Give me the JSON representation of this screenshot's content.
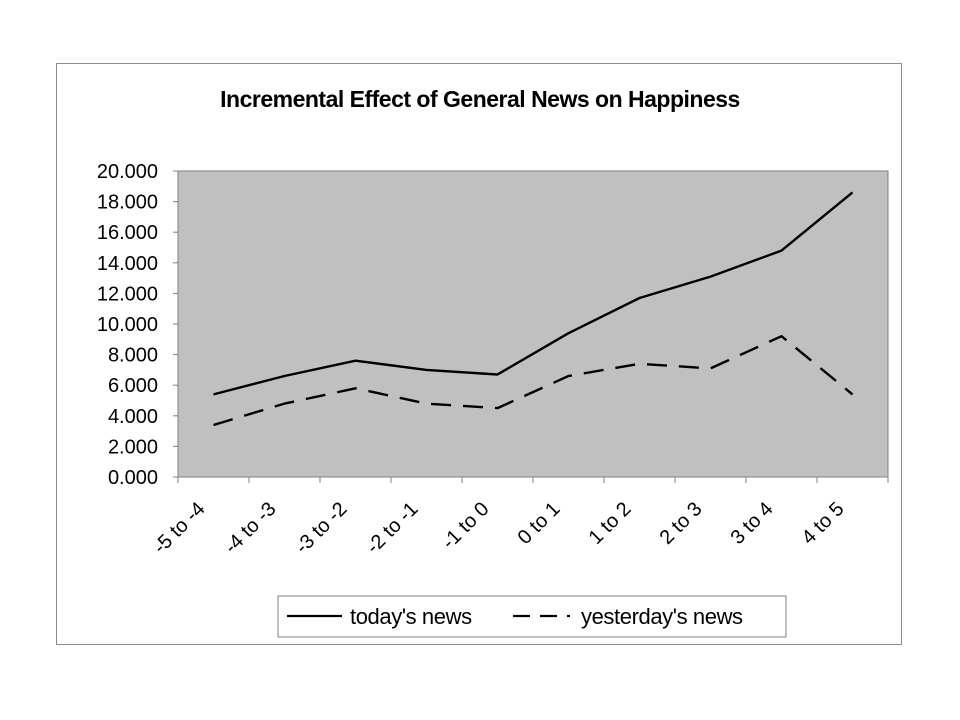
{
  "chart_data": {
    "type": "line",
    "title": "Incremental Effect of General News on Happiness",
    "xlabel": "",
    "ylabel": "",
    "categories": [
      "-5 to -4",
      "-4 to -3",
      "-3 to -2",
      "-2 to -1",
      "-1 to 0",
      "0 to 1",
      "1 to 2",
      "2 to 3",
      "3 to 4",
      "4 to 5"
    ],
    "y_ticks": [
      "0.000",
      "2.000",
      "4.000",
      "6.000",
      "8.000",
      "10.000",
      "12.000",
      "14.000",
      "16.000",
      "18.000",
      "20.000"
    ],
    "ylim": [
      0,
      20
    ],
    "grid": false,
    "plot_background": "#c0c0c0",
    "legend_position": "bottom",
    "series": [
      {
        "name": "today's news",
        "style": "solid",
        "color": "#000000",
        "values": [
          5.4,
          6.6,
          7.6,
          7.0,
          6.7,
          9.4,
          11.7,
          13.1,
          14.8,
          18.6
        ]
      },
      {
        "name": "yesterday's news",
        "style": "dashed",
        "color": "#000000",
        "values": [
          3.4,
          4.8,
          5.8,
          4.8,
          4.5,
          6.6,
          7.4,
          7.1,
          9.2,
          5.4
        ]
      }
    ]
  }
}
